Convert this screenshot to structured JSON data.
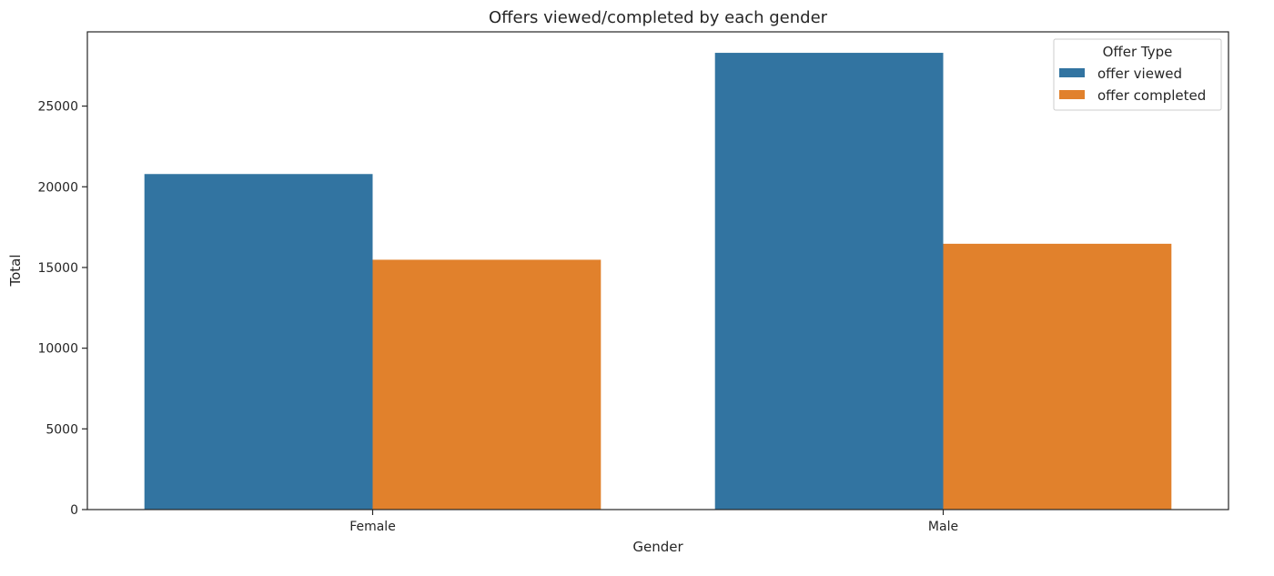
{
  "chart_data": {
    "type": "bar",
    "title": "Offers viewed/completed by each gender",
    "xlabel": "Gender",
    "ylabel": "Total",
    "categories": [
      "Female",
      "Male"
    ],
    "series": [
      {
        "name": "offer viewed",
        "color": "#3274a1",
        "values": [
          20790,
          28300
        ]
      },
      {
        "name": "offer completed",
        "color": "#e1812c",
        "values": [
          15480,
          16470
        ]
      }
    ],
    "ylim": [
      0,
      29600
    ],
    "yticks": [
      0,
      5000,
      10000,
      15000,
      20000,
      25000
    ],
    "ytick_labels": [
      "0",
      "5000",
      "10000",
      "15000",
      "20000",
      "25000"
    ],
    "grid": false,
    "legend": {
      "title": "Offer Type",
      "placement": "top-right"
    }
  }
}
